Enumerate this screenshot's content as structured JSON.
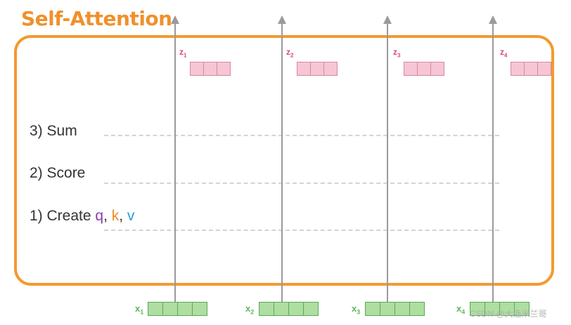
{
  "title": "Self-Attention",
  "steps": {
    "sum": "3) Sum",
    "score": "2) Score",
    "create_prefix": "1) Create ",
    "q": "q",
    "sep1": ", ",
    "k": "k",
    "sep2": ", ",
    "v": "v"
  },
  "outputs": [
    {
      "letter": "z",
      "sub": "1"
    },
    {
      "letter": "z",
      "sub": "2"
    },
    {
      "letter": "z",
      "sub": "3"
    },
    {
      "letter": "z",
      "sub": "4"
    }
  ],
  "inputs": [
    {
      "letter": "x",
      "sub": "1"
    },
    {
      "letter": "x",
      "sub": "2"
    },
    {
      "letter": "x",
      "sub": "3"
    },
    {
      "letter": "x",
      "sub": "4"
    }
  ],
  "watermark": "CSDN @大连米兰哥",
  "colors": {
    "accent": "#f39a2e",
    "q": "#8b3ab3",
    "k": "#f08a24",
    "v": "#2e9ad6",
    "output_vector": "#f7c5d4",
    "input_vector": "#aedea0"
  }
}
